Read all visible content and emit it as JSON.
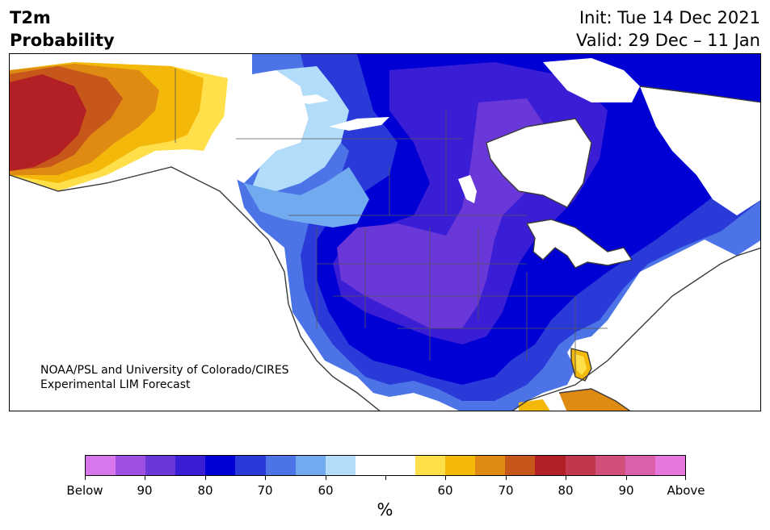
{
  "header": {
    "variable": "T2m",
    "subtitle": "Probability",
    "init": "Init: Tue 14 Dec 2021",
    "valid": "Valid: 29 Dec – 11 Jan"
  },
  "map": {
    "credit_line1": "NOAA/PSL and University of Colorado/CIRES",
    "credit_line2": "Experimental LIM Forecast",
    "colors": {
      "below90": "#6a37d8",
      "below80": "#3a1ed6",
      "below80_70": "#0000d4",
      "below70": "#2a3ad9",
      "below70_60": "#4d74e6",
      "below60": "#72aaf0",
      "near_below": "#b1ddfa",
      "neutral": "#ffffff",
      "near_above": "#ffe04a",
      "above60": "#f3b80a",
      "above70": "#df8a12",
      "above70_80": "#c7561a",
      "above80": "#b21f24"
    }
  },
  "colorbar": {
    "colors": [
      "#d877ec",
      "#a04fe3",
      "#6a37d8",
      "#3a1ed6",
      "#0000d4",
      "#2a3ad9",
      "#4d74e6",
      "#72aaf0",
      "#b1ddfa",
      "#ffffff",
      "#ffffff",
      "#ffe04a",
      "#f3b80a",
      "#df8a12",
      "#c7561a",
      "#b21f24",
      "#c0374e",
      "#d24f7a",
      "#dc5fac",
      "#e677dc"
    ],
    "labels": [
      "Below",
      "90",
      "80",
      "70",
      "60",
      "",
      "60",
      "70",
      "80",
      "90",
      "Above"
    ],
    "unit": "%"
  }
}
